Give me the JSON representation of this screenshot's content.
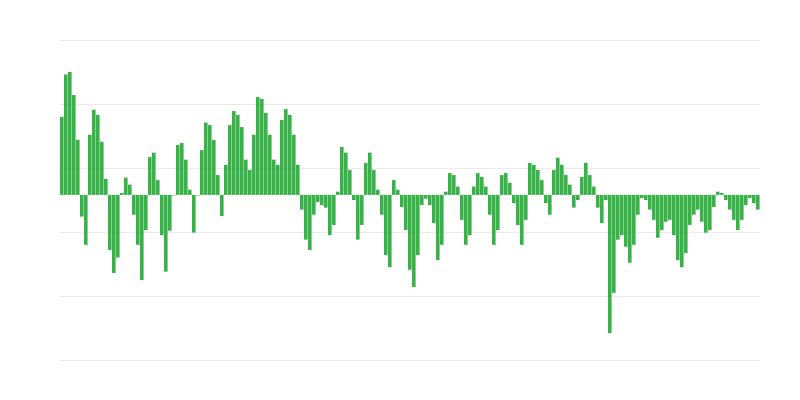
{
  "chart_data": {
    "type": "bar",
    "title": "",
    "xlabel": "",
    "ylabel": "",
    "ylim": [
      -2.58,
      2.42
    ],
    "grid": true,
    "legend": "none",
    "bar_color": "#39b24a",
    "grid_color": "#ebebeb",
    "values": [
      1.22,
      1.88,
      1.92,
      1.56,
      0.86,
      -0.34,
      -0.78,
      0.94,
      1.33,
      1.25,
      0.83,
      0.25,
      -0.86,
      -1.22,
      -0.98,
      0.03,
      0.27,
      0.16,
      -0.31,
      -0.78,
      -1.33,
      -0.55,
      0.59,
      0.66,
      0.23,
      -0.63,
      -1.2,
      -0.56,
      0,
      0.78,
      0.81,
      0.55,
      0.08,
      -0.59,
      0,
      0.7,
      1.13,
      1.09,
      0.86,
      0.31,
      -0.33,
      0.47,
      1.09,
      1.31,
      1.25,
      1.06,
      0.55,
      0.39,
      0.94,
      1.53,
      1.5,
      1.28,
      0.94,
      0.55,
      0.47,
      1.17,
      1.34,
      1.25,
      0.94,
      0.47,
      -0.23,
      -0.7,
      -0.86,
      -0.31,
      -0.11,
      -0.16,
      -0.2,
      -0.63,
      -0.47,
      0.05,
      0.75,
      0.66,
      0.39,
      -0.08,
      -0.7,
      -0.47,
      0.5,
      0.66,
      0.39,
      0.08,
      -0.31,
      -0.94,
      -1.13,
      0.23,
      0.08,
      -0.19,
      -0.55,
      -1.17,
      -1.44,
      -0.94,
      -0.16,
      -0.06,
      -0.16,
      -0.44,
      -1.02,
      -0.78,
      0.05,
      0.34,
      0.31,
      0.13,
      -0.39,
      -0.78,
      -0.63,
      0.13,
      0.34,
      0.28,
      0.13,
      -0.31,
      -0.78,
      -0.55,
      0.31,
      0.34,
      0.19,
      -0.13,
      -0.47,
      -0.78,
      -0.39,
      0.5,
      0.47,
      0.39,
      0.23,
      -0.13,
      -0.31,
      0.39,
      0.58,
      0.47,
      0.31,
      0.16,
      -0.2,
      -0.08,
      0.28,
      0.5,
      0.31,
      0.13,
      -0.2,
      -0.44,
      -0.08,
      -2.16,
      -1.53,
      -0.7,
      -0.63,
      -0.81,
      -1.06,
      -0.78,
      -0.31,
      -0.05,
      -0.08,
      -0.23,
      -0.39,
      -0.67,
      -0.55,
      -0.42,
      -0.39,
      -0.63,
      -1.02,
      -1.13,
      -0.91,
      -0.47,
      -0.31,
      -0.23,
      -0.42,
      -0.59,
      -0.55,
      -0.19,
      0.05,
      0.03,
      -0.08,
      -0.23,
      -0.39,
      -0.55,
      -0.39,
      -0.16,
      -0.05,
      -0.13,
      -0.23
    ]
  }
}
